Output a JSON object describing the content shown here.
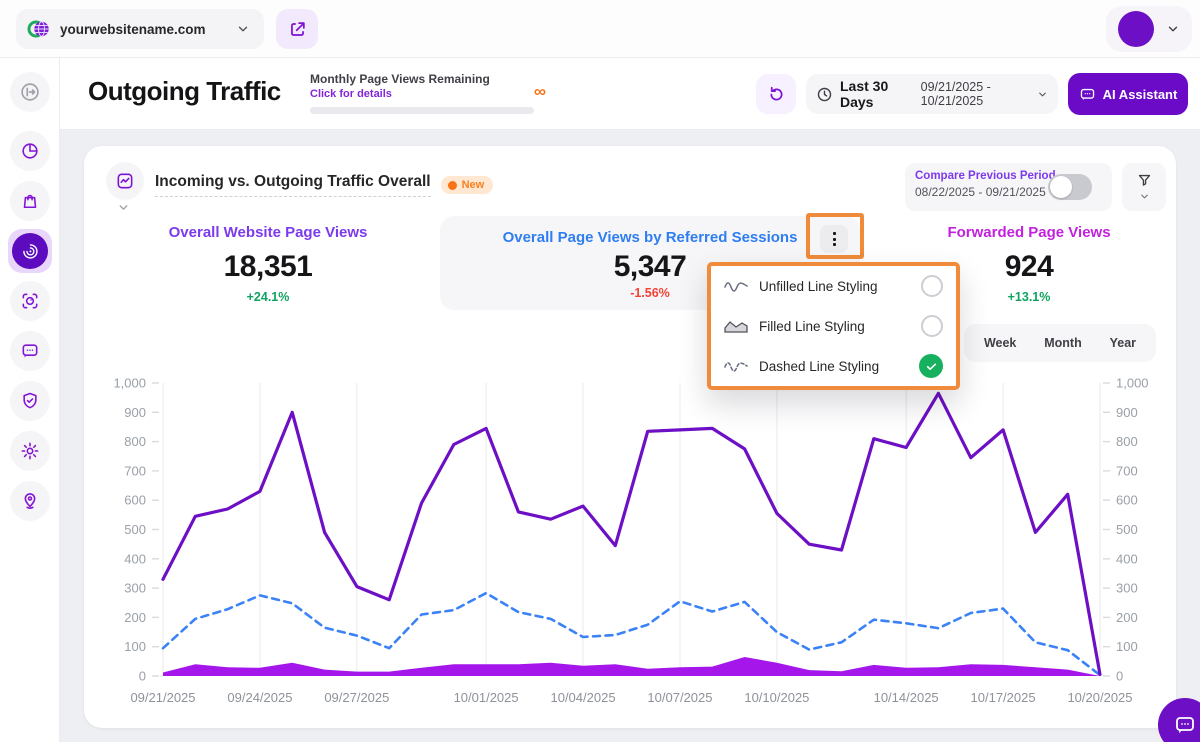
{
  "top_bar": {
    "site": "yourwebsitename.com"
  },
  "header": {
    "title": "Outgoing Traffic",
    "quota_label": "Monthly Page Views Remaining",
    "quota_link": "Click for details",
    "quota_value": "∞",
    "date_preset": "Last 30 Days",
    "date_range": "09/21/2025 - 10/21/2025",
    "ai_button": "AI Assistant"
  },
  "card": {
    "title": "Incoming vs. Outgoing Traffic Overall",
    "badge": "New",
    "compare_label": "Compare Previous Period",
    "compare_range": "08/22/2025 - 09/21/2025",
    "compare_toggle_on": false,
    "metrics": [
      {
        "label": "Overall Website Page Views",
        "value": "18,351",
        "delta": "+24.1%",
        "trend": "up"
      },
      {
        "label": "Overall Page Views by Referred Sessions",
        "value": "5,347",
        "delta": "-1.56%",
        "trend": "down"
      },
      {
        "label": "Forwarded Page Views",
        "value": "924",
        "delta": "+13.1%",
        "trend": "up"
      }
    ],
    "menu": {
      "items": [
        {
          "label": "Unfilled Line Styling",
          "selected": false
        },
        {
          "label": "Filled Line Styling",
          "selected": false
        },
        {
          "label": "Dashed Line Styling",
          "selected": true
        }
      ]
    },
    "tabs": [
      "Week",
      "Month",
      "Year"
    ]
  },
  "colors": {
    "accent_purple": "#6d0fc4",
    "line_outgoing": "#6d0fc4",
    "line_referred": "#3b82f6",
    "area_forwarded": "#a416ea",
    "annotation_orange": "#ef8b3a",
    "positive_green": "#0fa35f",
    "negative_red": "#f44133"
  },
  "chart_data": {
    "type": "line",
    "title": "Incoming vs. Outgoing Traffic Overall",
    "x_start": "09/21/2025",
    "x_end": "10/20/2025",
    "x_points": 30,
    "x_tick_labels": [
      "09/21/2025",
      "09/24/2025",
      "09/27/2025",
      "10/01/2025",
      "10/04/2025",
      "10/07/2025",
      "10/10/2025",
      "10/14/2025",
      "10/17/2025",
      "10/20/2025"
    ],
    "x_tick_positions": [
      0,
      3,
      6,
      10,
      13,
      16,
      19,
      23,
      26,
      29
    ],
    "ylim": [
      0,
      1000
    ],
    "y_tick_values": [
      0,
      100,
      200,
      300,
      400,
      500,
      600,
      700,
      800,
      900,
      1000
    ],
    "y_tick_labels": [
      "0",
      "100",
      "200",
      "300",
      "400",
      "500",
      "600",
      "700",
      "800",
      "900",
      "1,000"
    ],
    "grid": "vertical",
    "legend": "none",
    "series": [
      {
        "name": "Forwarded Page Views",
        "style": "area",
        "color": "#a416ea",
        "values": [
          12,
          40,
          30,
          28,
          45,
          22,
          15,
          15,
          28,
          40,
          40,
          40,
          45,
          35,
          40,
          25,
          30,
          32,
          65,
          45,
          20,
          16,
          38,
          28,
          30,
          40,
          38,
          30,
          22,
          0
        ]
      },
      {
        "name": "Overall Page Views by Referred Sessions",
        "style": "dashed",
        "color": "#3b82f6",
        "values": [
          95,
          195,
          228,
          275,
          248,
          165,
          138,
          95,
          210,
          225,
          283,
          218,
          195,
          133,
          140,
          175,
          255,
          220,
          253,
          150,
          90,
          115,
          192,
          180,
          163,
          215,
          230,
          115,
          88,
          3
        ]
      },
      {
        "name": "Overall Website Page Views",
        "style": "solid",
        "color": "#6d0fc4",
        "values": [
          330,
          545,
          570,
          630,
          900,
          490,
          305,
          260,
          590,
          790,
          845,
          560,
          535,
          580,
          445,
          835,
          840,
          845,
          775,
          555,
          450,
          430,
          810,
          780,
          965,
          745,
          840,
          490,
          620,
          5
        ]
      }
    ]
  }
}
